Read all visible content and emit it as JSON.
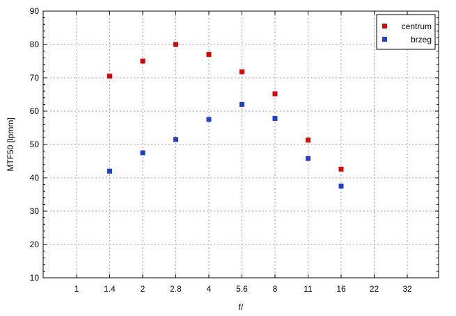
{
  "chart_data": {
    "type": "scatter",
    "xlabel": "f/",
    "ylabel": "MTF50 [lpmm]",
    "categories": [
      "1",
      "1.4",
      "2",
      "2.8",
      "4",
      "5.6",
      "8",
      "11",
      "16",
      "22",
      "32"
    ],
    "ylim": [
      10,
      90
    ],
    "yticks": [
      10,
      20,
      30,
      40,
      50,
      60,
      70,
      80,
      90
    ],
    "grid": true,
    "legend_position": "top-right",
    "series": [
      {
        "name": "centrum",
        "color": "#e00000",
        "x": [
          "1.4",
          "2",
          "2.8",
          "4",
          "5.6",
          "8",
          "11",
          "16"
        ],
        "values": [
          70.5,
          75,
          80,
          77,
          71.8,
          65.2,
          51.3,
          42.6
        ]
      },
      {
        "name": "brzeg",
        "color": "#1f3fd0",
        "x": [
          "1.4",
          "2",
          "2.8",
          "4",
          "5.6",
          "8",
          "11",
          "16"
        ],
        "values": [
          42,
          47.5,
          51.5,
          57.5,
          62,
          57.8,
          45.8,
          37.5
        ]
      }
    ]
  }
}
